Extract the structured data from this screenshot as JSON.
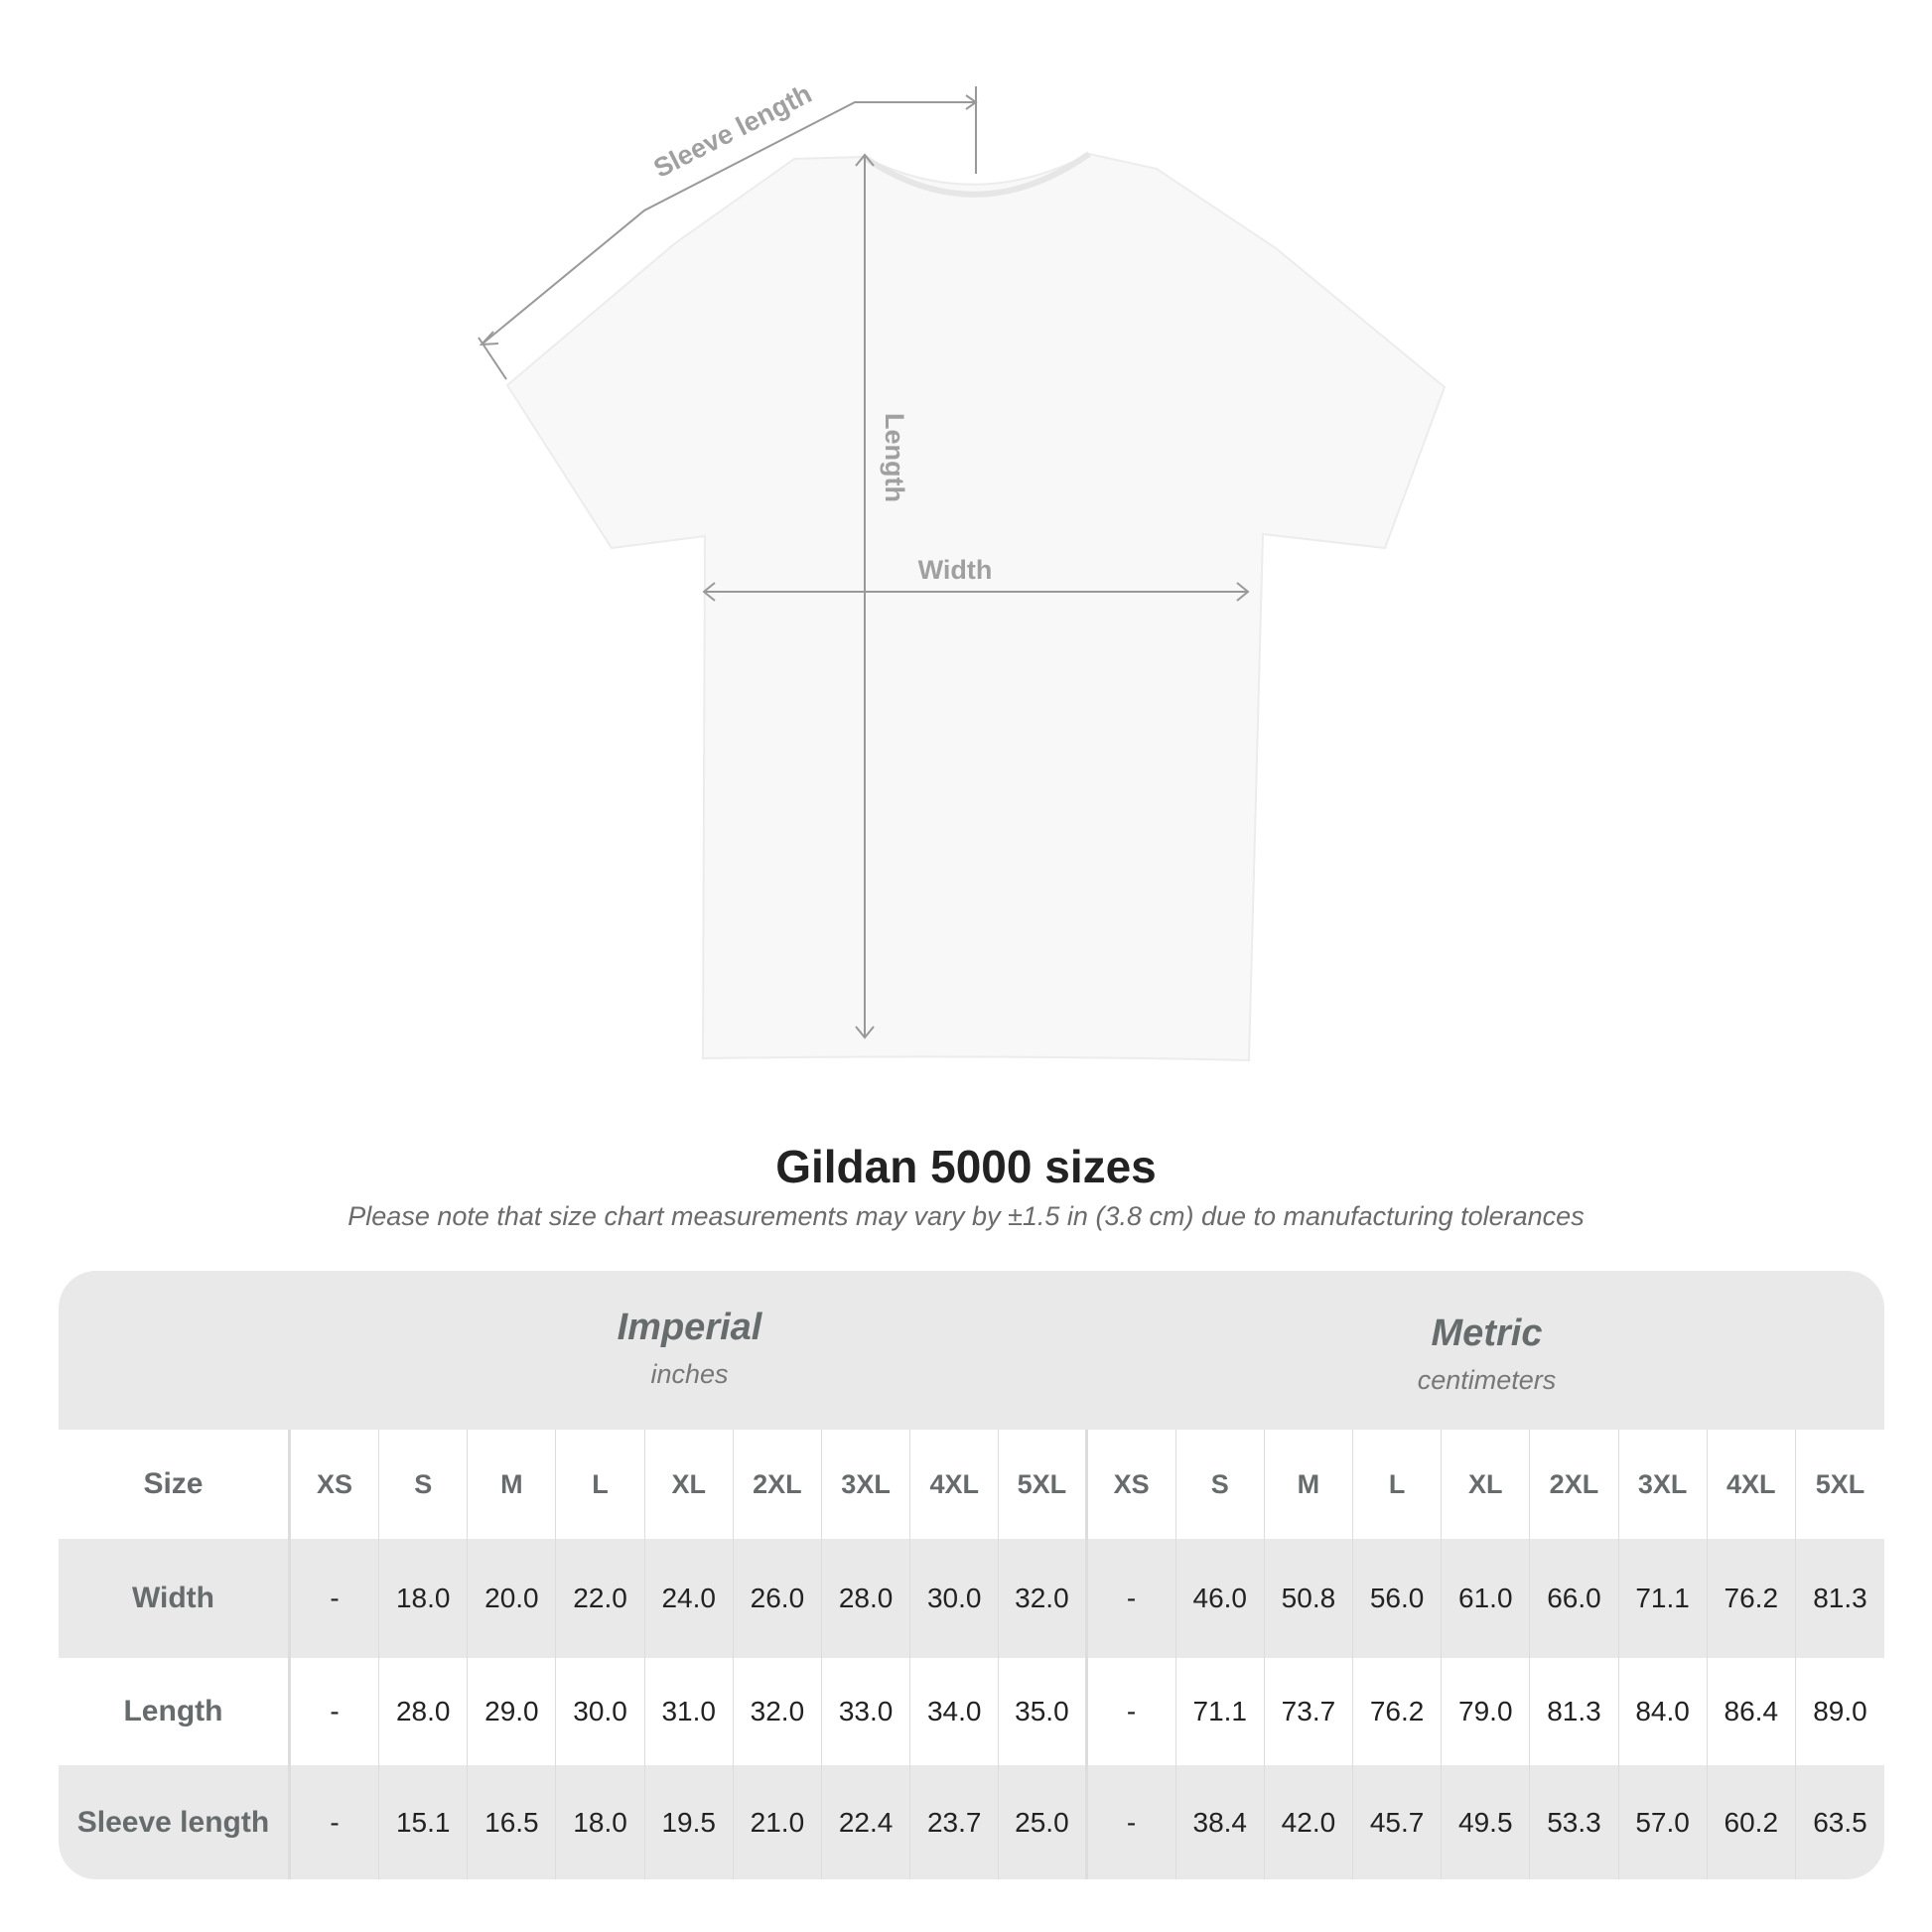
{
  "diagram": {
    "sleeve_label": "Sleeve length",
    "length_label": "Length",
    "width_label": "Width"
  },
  "title": "Gildan 5000 sizes",
  "note": "Please note that size chart measurements may vary by ±1.5 in (3.8 cm) due to manufacturing tolerances",
  "table": {
    "imperial": {
      "title": "Imperial",
      "unit": "inches"
    },
    "metric": {
      "title": "Metric",
      "unit": "centimeters"
    },
    "size_label": "Size",
    "sizes": [
      "XS",
      "S",
      "M",
      "L",
      "XL",
      "2XL",
      "3XL",
      "4XL",
      "5XL"
    ],
    "rows": [
      {
        "label": "Width",
        "imperial": [
          "-",
          "18.0",
          "20.0",
          "22.0",
          "24.0",
          "26.0",
          "28.0",
          "30.0",
          "32.0"
        ],
        "metric": [
          "-",
          "46.0",
          "50.8",
          "56.0",
          "61.0",
          "66.0",
          "71.1",
          "76.2",
          "81.3"
        ]
      },
      {
        "label": "Length",
        "imperial": [
          "-",
          "28.0",
          "29.0",
          "30.0",
          "31.0",
          "32.0",
          "33.0",
          "34.0",
          "35.0"
        ],
        "metric": [
          "-",
          "71.1",
          "73.7",
          "76.2",
          "79.0",
          "81.3",
          "84.0",
          "86.4",
          "89.0"
        ]
      },
      {
        "label": "Sleeve length",
        "imperial": [
          "-",
          "15.1",
          "16.5",
          "18.0",
          "19.5",
          "21.0",
          "22.4",
          "23.7",
          "25.0"
        ],
        "metric": [
          "-",
          "38.4",
          "42.0",
          "45.7",
          "49.5",
          "53.3",
          "57.0",
          "60.2",
          "63.5"
        ]
      }
    ]
  }
}
